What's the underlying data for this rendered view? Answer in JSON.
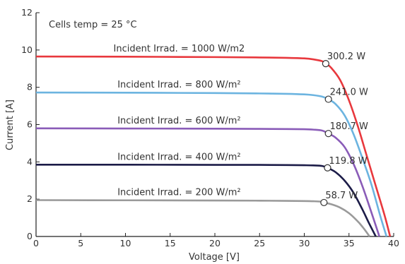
{
  "chart_data": {
    "type": "line",
    "title": "",
    "annotation": "Cells temp = 25 °C",
    "xlabel": "Voltage [V]",
    "ylabel": "Current [A]",
    "xlim": [
      0,
      40
    ],
    "ylim": [
      0,
      12
    ],
    "xticks": [
      0,
      5,
      10,
      15,
      20,
      25,
      30,
      35,
      40
    ],
    "yticks": [
      0,
      2,
      4,
      6,
      8,
      10,
      12
    ],
    "grid": false,
    "series": [
      {
        "name": "Incident Irrad. = 1000 W/m2",
        "color": "#e8383d",
        "x": [
          0,
          10,
          20,
          25,
          28,
          30,
          31,
          32,
          32.4,
          33,
          34,
          35,
          36,
          37,
          38,
          39,
          39.6
        ],
        "y": [
          9.65,
          9.64,
          9.62,
          9.6,
          9.58,
          9.55,
          9.5,
          9.4,
          9.27,
          9.05,
          8.4,
          7.3,
          5.9,
          4.3,
          2.7,
          1.1,
          0
        ],
        "mpp": {
          "x": 32.4,
          "y": 9.27,
          "label": "300.2 W"
        }
      },
      {
        "name": "Incident Irrad. = 800 W/m²",
        "color": "#6cb4e0",
        "x": [
          0,
          10,
          20,
          25,
          28,
          30,
          31,
          32,
          32.7,
          33.5,
          34.5,
          35.5,
          36.5,
          37.5,
          38.5,
          39.2
        ],
        "y": [
          7.72,
          7.71,
          7.69,
          7.67,
          7.65,
          7.62,
          7.58,
          7.5,
          7.36,
          7.1,
          6.5,
          5.5,
          4.2,
          2.8,
          1.1,
          0
        ],
        "mpp": {
          "x": 32.7,
          "y": 7.36,
          "label": "241.0 W"
        }
      },
      {
        "name": "Incident Irrad. = 600 W/m²",
        "color": "#8a5cb8",
        "x": [
          0,
          10,
          20,
          25,
          28,
          30,
          31,
          32,
          32.7,
          33.5,
          34.5,
          35.5,
          36.5,
          37.5,
          38.4
        ],
        "y": [
          5.8,
          5.79,
          5.78,
          5.77,
          5.76,
          5.75,
          5.73,
          5.68,
          5.52,
          5.3,
          4.8,
          3.9,
          2.7,
          1.3,
          0
        ],
        "mpp": {
          "x": 32.7,
          "y": 5.52,
          "label": "180.7 W"
        }
      },
      {
        "name": "Incident Irrad. = 400 W/m²",
        "color": "#1c1c48",
        "x": [
          0,
          10,
          20,
          25,
          28,
          30,
          31,
          32,
          32.6,
          33.5,
          34.5,
          35.5,
          36.5,
          37.2,
          38.0
        ],
        "y": [
          3.85,
          3.85,
          3.84,
          3.84,
          3.83,
          3.82,
          3.81,
          3.78,
          3.68,
          3.45,
          3.0,
          2.35,
          1.45,
          0.75,
          0
        ],
        "mpp": {
          "x": 32.6,
          "y": 3.68,
          "label": "119.8 W"
        }
      },
      {
        "name": "Incident Irrad. = 200 W/m²",
        "color": "#9a9a9a",
        "x": [
          0,
          10,
          20,
          25,
          28,
          30,
          31,
          31.8,
          32.2,
          33,
          34,
          35,
          36,
          36.7,
          37.3
        ],
        "y": [
          1.95,
          1.94,
          1.93,
          1.92,
          1.91,
          1.9,
          1.89,
          1.87,
          1.82,
          1.73,
          1.55,
          1.25,
          0.8,
          0.4,
          0
        ],
        "mpp": {
          "x": 32.2,
          "y": 1.82,
          "label": "58.7 W"
        }
      }
    ]
  }
}
